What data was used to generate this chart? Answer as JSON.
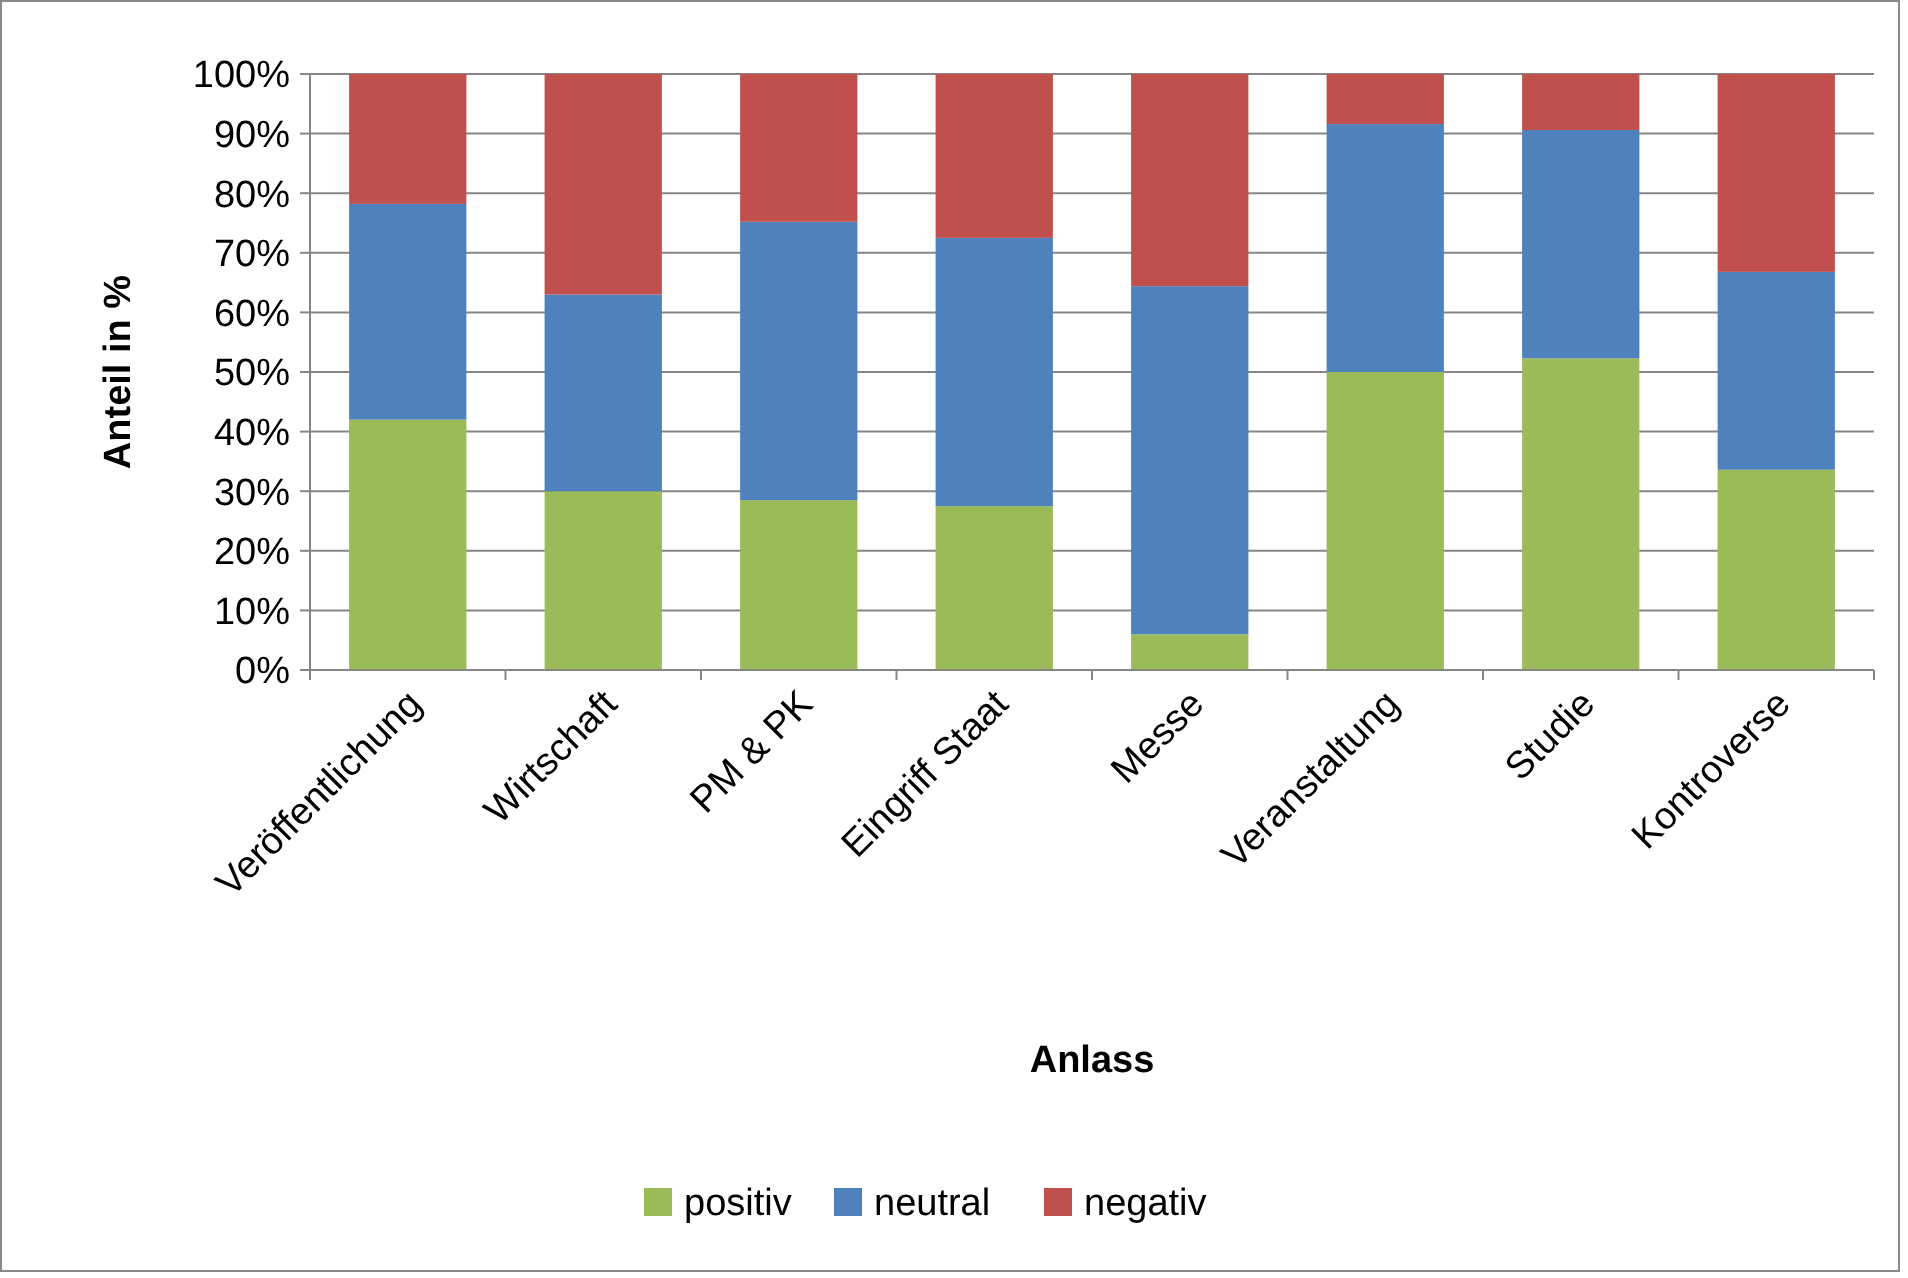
{
  "chart_data": {
    "type": "bar",
    "stacked": true,
    "xlabel": "Anlass",
    "ylabel": "Anteil in %",
    "categories": [
      "Veröffentlichung",
      "Wirtschaft",
      "PM & PK",
      "Eingriff Staat",
      "Messe",
      "Veranstaltung",
      "Studie",
      "Kontroverse"
    ],
    "series": [
      {
        "name": "positiv",
        "color": "#9bbb59",
        "values": [
          42,
          30,
          28.5,
          27.5,
          6,
          50,
          52.3,
          33.6
        ]
      },
      {
        "name": "neutral",
        "color": "#4f81bd",
        "values": [
          36.2,
          33,
          46.7,
          45,
          58.4,
          41.6,
          38.3,
          33.2
        ]
      },
      {
        "name": "negativ",
        "color": "#c0504d",
        "values": [
          21.8,
          37,
          24.8,
          27.5,
          35.6,
          8.4,
          9.4,
          33.2
        ]
      }
    ],
    "ylim": [
      0,
      100
    ],
    "yticks": [
      {
        "value": 0,
        "label": "0%"
      },
      {
        "value": 10,
        "label": "10%"
      },
      {
        "value": 20,
        "label": "20%"
      },
      {
        "value": 30,
        "label": "30%"
      },
      {
        "value": 40,
        "label": "40%"
      },
      {
        "value": 50,
        "label": "50%"
      },
      {
        "value": 60,
        "label": "60%"
      },
      {
        "value": 70,
        "label": "70%"
      },
      {
        "value": 80,
        "label": "80%"
      },
      {
        "value": 90,
        "label": "90%"
      },
      {
        "value": 100,
        "label": "100%"
      }
    ],
    "grid": "y",
    "legend": "bottom"
  }
}
